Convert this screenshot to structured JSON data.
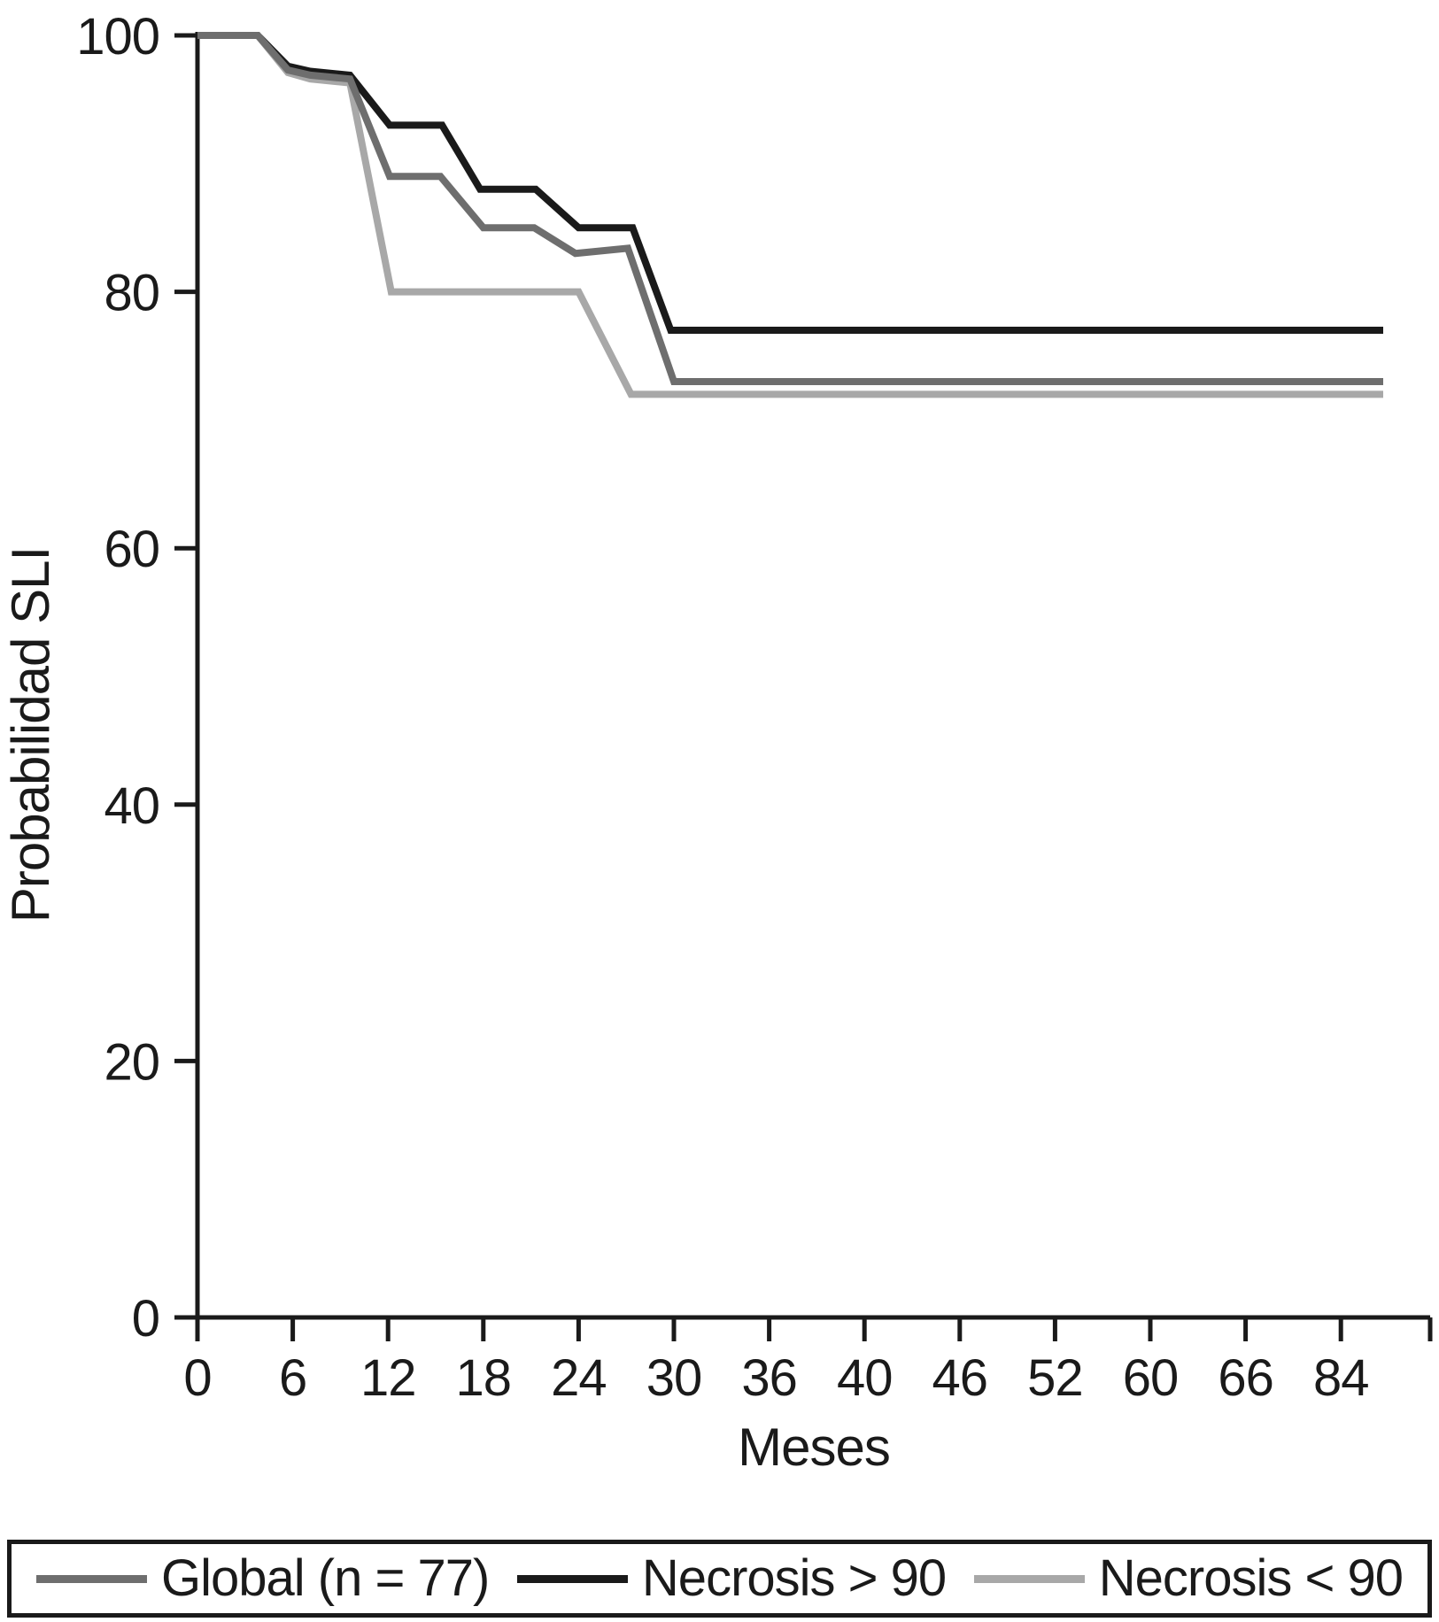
{
  "figure": {
    "background": "#ffffff",
    "text_color": "#1a1a1a"
  },
  "chart_data": {
    "type": "line",
    "subtype": "kaplan-meier-step-style",
    "title": "",
    "xlabel": "Meses",
    "ylabel": "Probabilidad SLI",
    "x_tick_labels": [
      0,
      6,
      12,
      18,
      24,
      30,
      36,
      40,
      46,
      52,
      60,
      66,
      84
    ],
    "x_axis_note": "ticks evenly spaced with non-uniform month increments; unlabeled terminal tick at axis end",
    "y_ticks": [
      0,
      20,
      40,
      60,
      80,
      100
    ],
    "ylim": [
      0,
      100
    ],
    "grid": false,
    "legend_position": "bottom",
    "series": [
      {
        "name": "Global (n = 77)",
        "color": "#6e6e6e",
        "points": [
          [
            0,
            100
          ],
          [
            3.8,
            100
          ],
          [
            5.7,
            97.3
          ],
          [
            7.1,
            96.9
          ],
          [
            9.6,
            96.6
          ],
          [
            12.1,
            89
          ],
          [
            15.3,
            89
          ],
          [
            18,
            85
          ],
          [
            21.2,
            85
          ],
          [
            23.8,
            83
          ],
          [
            27.1,
            83.4
          ],
          [
            30,
            73
          ],
          [
            92,
            73
          ]
        ]
      },
      {
        "name": "Necrosis > 90",
        "color": "#1a1a1a",
        "points": [
          [
            0,
            100
          ],
          [
            3.8,
            100
          ],
          [
            5.7,
            97.6
          ],
          [
            7.1,
            97.2
          ],
          [
            9.6,
            96.9
          ],
          [
            12.1,
            93
          ],
          [
            15.4,
            93
          ],
          [
            17.8,
            88
          ],
          [
            21.3,
            88
          ],
          [
            24,
            85
          ],
          [
            27.4,
            85
          ],
          [
            29.8,
            77
          ],
          [
            92,
            77
          ]
        ]
      },
      {
        "name": "Necrosis < 90",
        "color": "#a8a8a8",
        "points": [
          [
            0,
            100
          ],
          [
            3.8,
            100
          ],
          [
            5.7,
            97.1
          ],
          [
            7.1,
            96.6
          ],
          [
            9.6,
            96.3
          ],
          [
            12.2,
            80
          ],
          [
            24,
            80
          ],
          [
            27.3,
            72
          ],
          [
            92,
            72
          ]
        ]
      }
    ]
  },
  "legend": {
    "items": [
      {
        "label": "Global (n = 77)",
        "color": "#6e6e6e"
      },
      {
        "label": "Necrosis > 90",
        "color": "#1a1a1a"
      },
      {
        "label": "Necrosis < 90",
        "color": "#a8a8a8"
      }
    ]
  }
}
